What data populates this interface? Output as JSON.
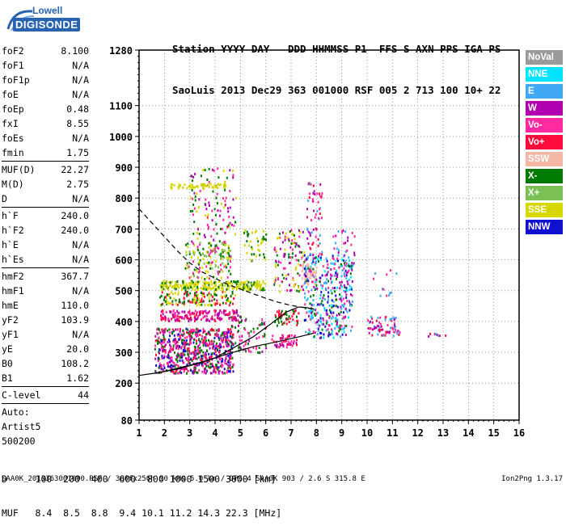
{
  "logo": {
    "line1": "Lowell",
    "line2": "DIGISONDE"
  },
  "header": {
    "line1": "Station YYYY DAY   DDD HHMMSS P1  FFS S AXN PPS IGA PS",
    "line2": "SaoLuis 2013 Dec29 363 001000 RSF 005 2 713 100 10+ 22"
  },
  "params": {
    "group1": [
      {
        "k": "foF2",
        "v": "8.100"
      },
      {
        "k": "foF1",
        "v": "N/A"
      },
      {
        "k": "foF1p",
        "v": "N/A"
      },
      {
        "k": "foE",
        "v": "N/A"
      },
      {
        "k": "foEp",
        "v": "0.48"
      },
      {
        "k": "fxI",
        "v": "8.55"
      },
      {
        "k": "foEs",
        "v": "N/A"
      },
      {
        "k": "fmin",
        "v": "1.75"
      }
    ],
    "group2": [
      {
        "k": "MUF(D)",
        "v": "22.27"
      },
      {
        "k": "M(D)",
        "v": "2.75"
      },
      {
        "k": "D",
        "v": "N/A"
      }
    ],
    "group3": [
      {
        "k": "h`F",
        "v": "240.0"
      },
      {
        "k": "h`F2",
        "v": "240.0"
      },
      {
        "k": "h`E",
        "v": "N/A"
      },
      {
        "k": "h`Es",
        "v": "N/A"
      }
    ],
    "group4": [
      {
        "k": "hmF2",
        "v": "367.7"
      },
      {
        "k": "hmF1",
        "v": "N/A"
      },
      {
        "k": "hmE",
        "v": "110.0"
      },
      {
        "k": "yF2",
        "v": "103.9"
      },
      {
        "k": "yF1",
        "v": "N/A"
      },
      {
        "k": "yE",
        "v": "20.0"
      },
      {
        "k": "B0",
        "v": "108.2"
      },
      {
        "k": "B1",
        "v": "1.62"
      }
    ],
    "group5": [
      {
        "k": "C-level",
        "v": "44"
      }
    ]
  },
  "auto": {
    "line1": "Auto:",
    "line2": "Artist5",
    "line3": "500200"
  },
  "legend": [
    {
      "label": "NoVal",
      "color": "#9a9a9a"
    },
    {
      "label": "NNE",
      "color": "#00e5ff"
    },
    {
      "label": "E",
      "color": "#3fa9f5"
    },
    {
      "label": "W",
      "color": "#b000b0"
    },
    {
      "label": "Vo-",
      "color": "#ff2aa0"
    },
    {
      "label": "Vo+",
      "color": "#ff0a3c"
    },
    {
      "label": "SSW",
      "color": "#f5b8a5"
    },
    {
      "label": "X-",
      "color": "#007a00"
    },
    {
      "label": "X+",
      "color": "#7bbf55"
    },
    {
      "label": "SSE",
      "color": "#d6d600"
    },
    {
      "label": "NNW",
      "color": "#1010d0"
    }
  ],
  "footer": {
    "line1": "D     100  200  400  600  800 1000 1500 3000 [km]",
    "line2": "MUF   8.4  8.5  8.8  9.4 10.1 11.2 14.3 22.3 [MHz]",
    "line3": "SAA0K_2013363001000.RSF / 300fx256h 50 kHs 5.0 km / DPS-4 SAA0K 903 / 2.6 S 315.8 E",
    "version": "Ion2Png 1.3.17"
  },
  "chart_data": {
    "type": "scatter",
    "title": "",
    "xlabel": "",
    "ylabel": "",
    "xlim": [
      1,
      16
    ],
    "ylim": [
      80,
      1280
    ],
    "x_ticks": [
      1,
      2,
      3,
      4,
      5,
      6,
      7,
      8,
      9,
      10,
      11,
      12,
      13,
      14,
      15,
      16
    ],
    "y_ticks": [
      80,
      200,
      300,
      400,
      500,
      600,
      700,
      800,
      900,
      1000,
      1100,
      1280
    ],
    "grid": true,
    "traces": [
      {
        "name": "",
        "style": "solid",
        "x": [
          1.0,
          1.6,
          2.5,
          3.5,
          4.5,
          5.5,
          6.5,
          7.3,
          7.9
        ],
        "y": [
          225,
          232,
          245,
          268,
          295,
          318,
          335,
          350,
          362
        ]
      },
      {
        "name": "",
        "style": "solid",
        "x": [
          1.7,
          2.5,
          3.2,
          4.0,
          4.8,
          5.5,
          6.2,
          6.8,
          7.3,
          7.6,
          7.9
        ],
        "y": [
          232,
          248,
          262,
          282,
          318,
          350,
          392,
          430,
          447,
          445,
          440
        ]
      },
      {
        "name": "",
        "style": "dashed",
        "x": [
          1.0,
          1.5,
          2.0,
          2.5,
          3.0,
          3.5,
          4.0,
          4.5,
          5.0,
          5.5,
          6.0,
          6.5,
          7.0,
          7.5,
          7.9
        ],
        "y": [
          765,
          720,
          675,
          630,
          590,
          560,
          540,
          520,
          505,
          490,
          475,
          462,
          452,
          445,
          440
        ]
      }
    ],
    "clusters": [
      {
        "x": [
          1.6,
          4.7
        ],
        "y": [
          235,
          380
        ],
        "colors": [
          "#ff2aa0",
          "#b000b0",
          "#ff0a3c",
          "#1010d0",
          "#007a00"
        ],
        "n": 700
      },
      {
        "x": [
          1.8,
          4.9
        ],
        "y": [
          405,
          440
        ],
        "colors": [
          "#ff0a3c",
          "#ff2aa0",
          "#b000b0"
        ],
        "n": 180
      },
      {
        "x": [
          1.8,
          4.8
        ],
        "y": [
          455,
          500
        ],
        "colors": [
          "#007a00",
          "#d6d600",
          "#ff0a3c"
        ],
        "n": 140
      },
      {
        "x": [
          1.8,
          6.0
        ],
        "y": [
          505,
          535
        ],
        "colors": [
          "#d6d600",
          "#d6d600",
          "#007a00"
        ],
        "n": 260
      },
      {
        "x": [
          2.8,
          4.6
        ],
        "y": [
          540,
          660
        ],
        "colors": [
          "#d6d600",
          "#7bbf55",
          "#007a00",
          "#ff2aa0"
        ],
        "n": 150
      },
      {
        "x": [
          3.0,
          4.8
        ],
        "y": [
          660,
          900
        ],
        "colors": [
          "#d6d600",
          "#ff2aa0",
          "#007a00",
          "#b000b0"
        ],
        "n": 120
      },
      {
        "x": [
          2.2,
          4.4
        ],
        "y": [
          835,
          850
        ],
        "colors": [
          "#d6d600"
        ],
        "n": 60
      },
      {
        "x": [
          4.6,
          6.0
        ],
        "y": [
          300,
          420
        ],
        "colors": [
          "#ff2aa0",
          "#007a00",
          "#b000b0"
        ],
        "n": 80
      },
      {
        "x": [
          6.2,
          7.2
        ],
        "y": [
          320,
          360
        ],
        "colors": [
          "#ff2aa0",
          "#b000b0",
          "#ff0a3c"
        ],
        "n": 50
      },
      {
        "x": [
          6.3,
          7.3
        ],
        "y": [
          390,
          440
        ],
        "colors": [
          "#ff0a3c",
          "#007a00"
        ],
        "n": 50
      },
      {
        "x": [
          6.3,
          7.5
        ],
        "y": [
          500,
          700
        ],
        "colors": [
          "#d6d600",
          "#ff2aa0",
          "#007a00",
          "#b000b0"
        ],
        "n": 110
      },
      {
        "x": [
          5.1,
          6.0
        ],
        "y": [
          600,
          700
        ],
        "colors": [
          "#d6d600",
          "#007a00"
        ],
        "n": 40
      },
      {
        "x": [
          7.4,
          8.0
        ],
        "y": [
          520,
          590
        ],
        "colors": [
          "#f5b8a5"
        ],
        "n": 60
      },
      {
        "x": [
          7.5,
          9.4
        ],
        "y": [
          350,
          620
        ],
        "colors": [
          "#1010d0",
          "#3fa9f5",
          "#00e5ff",
          "#b000b0",
          "#ff2aa0",
          "#007a00"
        ],
        "n": 380
      },
      {
        "x": [
          7.6,
          8.2
        ],
        "y": [
          620,
          860
        ],
        "colors": [
          "#ff2aa0",
          "#ff0a3c",
          "#3fa9f5",
          "#b000b0"
        ],
        "n": 60
      },
      {
        "x": [
          8.6,
          9.5
        ],
        "y": [
          560,
          700
        ],
        "colors": [
          "#ff2aa0",
          "#b000b0",
          "#3fa9f5"
        ],
        "n": 35
      },
      {
        "x": [
          10.0,
          11.3
        ],
        "y": [
          355,
          420
        ],
        "colors": [
          "#ff2aa0",
          "#b000b0",
          "#3fa9f5",
          "#ff0a3c"
        ],
        "n": 70
      },
      {
        "x": [
          10.2,
          11.2
        ],
        "y": [
          480,
          620
        ],
        "colors": [
          "#ff2aa0",
          "#3fa9f5"
        ],
        "n": 12
      },
      {
        "x": [
          12.3,
          13.1
        ],
        "y": [
          355,
          370
        ],
        "colors": [
          "#b000b0",
          "#ff0a3c",
          "#3fa9f5"
        ],
        "n": 8
      }
    ]
  }
}
